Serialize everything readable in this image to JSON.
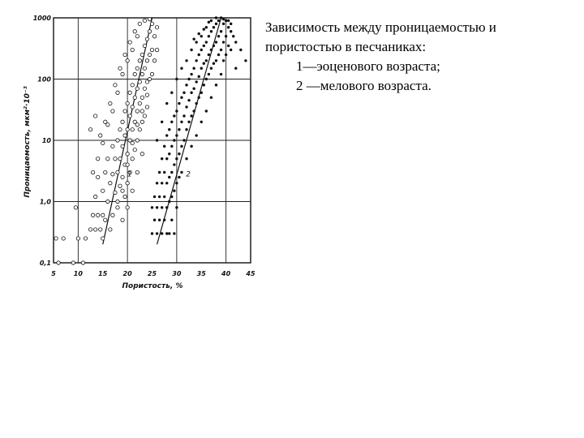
{
  "caption": {
    "line1": "Зависимость между проницаемостью и",
    "line2": "пористостью в песчаниках:",
    "line3": "1—эоценового   возраста;",
    "line4": "2 —мелового возраста."
  },
  "chart_data": {
    "type": "scatter",
    "xlabel": "Пористость, %",
    "ylabel": "Проницаемость,  мкм²·10⁻³",
    "xlim": [
      5,
      45
    ],
    "ylim": [
      0.1,
      1000
    ],
    "yscale": "log",
    "grid": true,
    "x_ticks": [
      "5",
      "10",
      "15",
      "20",
      "25",
      "30",
      "35",
      "40",
      "45"
    ],
    "y_ticks": [
      "0,1",
      "1,0",
      "10",
      "100",
      "1000"
    ],
    "series": [
      {
        "name": "1",
        "marker": "open-circle",
        "trend": [
          [
            15,
            0.2
          ],
          [
            25,
            1000
          ]
        ],
        "points": [
          [
            5.5,
            0.25
          ],
          [
            6,
            0.1
          ],
          [
            7,
            0.25
          ],
          [
            9,
            0.1
          ],
          [
            9.5,
            0.8
          ],
          [
            10,
            0.25
          ],
          [
            11,
            0.1
          ],
          [
            11.5,
            0.25
          ],
          [
            12.5,
            0.35
          ],
          [
            13,
            0.6
          ],
          [
            13.5,
            0.35
          ],
          [
            13.5,
            1.2
          ],
          [
            14,
            0.6
          ],
          [
            14,
            2.5
          ],
          [
            14.5,
            0.35
          ],
          [
            15,
            0.6
          ],
          [
            15,
            1.5
          ],
          [
            15,
            0.25
          ],
          [
            15.5,
            3
          ],
          [
            15.5,
            0.5
          ],
          [
            16,
            1
          ],
          [
            16,
            5
          ],
          [
            16.5,
            0.35
          ],
          [
            16.5,
            2
          ],
          [
            17,
            8
          ],
          [
            17,
            2.8
          ],
          [
            17,
            0.6
          ],
          [
            17.5,
            5
          ],
          [
            17.5,
            1.4
          ],
          [
            18,
            10
          ],
          [
            18,
            3
          ],
          [
            18,
            0.8
          ],
          [
            18.5,
            15
          ],
          [
            18.5,
            5
          ],
          [
            18.5,
            1.8
          ],
          [
            19,
            20
          ],
          [
            19,
            8
          ],
          [
            19,
            2.5
          ],
          [
            19,
            0.5
          ],
          [
            19.5,
            30
          ],
          [
            19.5,
            12
          ],
          [
            19.5,
            4
          ],
          [
            19.5,
            1.2
          ],
          [
            20,
            40
          ],
          [
            20,
            15
          ],
          [
            20,
            6
          ],
          [
            20,
            2
          ],
          [
            20,
            0.8
          ],
          [
            20.5,
            60
          ],
          [
            20.5,
            25
          ],
          [
            20.5,
            10
          ],
          [
            20.5,
            3
          ],
          [
            21,
            80
          ],
          [
            21,
            35
          ],
          [
            21,
            15
          ],
          [
            21,
            5
          ],
          [
            21,
            1.5
          ],
          [
            21.5,
            120
          ],
          [
            21.5,
            50
          ],
          [
            21.5,
            20
          ],
          [
            21.5,
            7
          ],
          [
            22,
            150
          ],
          [
            22,
            70
          ],
          [
            22,
            30
          ],
          [
            22,
            10
          ],
          [
            22,
            3
          ],
          [
            22.5,
            200
          ],
          [
            22.5,
            90
          ],
          [
            22.5,
            40
          ],
          [
            22.5,
            15
          ],
          [
            23,
            250
          ],
          [
            23,
            120
          ],
          [
            23,
            50
          ],
          [
            23,
            20
          ],
          [
            23,
            6
          ],
          [
            23.5,
            350
          ],
          [
            23.5,
            150
          ],
          [
            23.5,
            70
          ],
          [
            23.5,
            25
          ],
          [
            24,
            450
          ],
          [
            24,
            200
          ],
          [
            24,
            90
          ],
          [
            24,
            35
          ],
          [
            24.5,
            600
          ],
          [
            24.5,
            250
          ],
          [
            24.5,
            100
          ],
          [
            25,
            800
          ],
          [
            25,
            300
          ],
          [
            25,
            120
          ],
          [
            25.5,
            500
          ],
          [
            25.5,
            200
          ],
          [
            26,
            700
          ],
          [
            26,
            300
          ],
          [
            22.5,
            800
          ],
          [
            21.5,
            600
          ],
          [
            20.5,
            400
          ],
          [
            19.5,
            250
          ],
          [
            18.5,
            150
          ],
          [
            17.5,
            80
          ],
          [
            16.5,
            40
          ],
          [
            15.5,
            20
          ],
          [
            14.5,
            12
          ],
          [
            13.5,
            25
          ],
          [
            12.5,
            15
          ],
          [
            23.5,
            900
          ],
          [
            24.5,
            950
          ],
          [
            22,
            500
          ],
          [
            21,
            300
          ],
          [
            20,
            200
          ],
          [
            19,
            120
          ],
          [
            18,
            60
          ],
          [
            17,
            30
          ],
          [
            16,
            18
          ],
          [
            15,
            9
          ],
          [
            14,
            5
          ],
          [
            13,
            3
          ],
          [
            24,
            55
          ],
          [
            23,
            30
          ],
          [
            22,
            18
          ],
          [
            21,
            9
          ],
          [
            20,
            4
          ],
          [
            19,
            1.5
          ],
          [
            18,
            1
          ]
        ]
      },
      {
        "name": "2",
        "marker": "filled-dot",
        "trend": [
          [
            26,
            0.2
          ],
          [
            39,
            1000
          ]
        ],
        "points": [
          [
            25,
            0.8
          ],
          [
            25,
            0.3
          ],
          [
            25.5,
            1.2
          ],
          [
            25.5,
            0.5
          ],
          [
            26,
            2
          ],
          [
            26,
            0.8
          ],
          [
            26,
            0.3
          ],
          [
            26.5,
            3
          ],
          [
            26.5,
            1.2
          ],
          [
            26.5,
            0.5
          ],
          [
            27,
            5
          ],
          [
            27,
            2
          ],
          [
            27,
            0.8
          ],
          [
            27,
            0.3
          ],
          [
            27.5,
            8
          ],
          [
            27.5,
            3
          ],
          [
            27.5,
            1.2
          ],
          [
            27.5,
            0.5
          ],
          [
            28,
            12
          ],
          [
            28,
            5
          ],
          [
            28,
            2
          ],
          [
            28,
            0.8
          ],
          [
            28,
            0.3
          ],
          [
            28.5,
            15
          ],
          [
            28.5,
            6
          ],
          [
            28.5,
            2.5
          ],
          [
            28.5,
            1
          ],
          [
            28.5,
            0.3
          ],
          [
            29,
            20
          ],
          [
            29,
            8
          ],
          [
            29,
            3
          ],
          [
            29,
            1.2
          ],
          [
            29,
            0.5
          ],
          [
            29.5,
            25
          ],
          [
            29.5,
            10
          ],
          [
            29.5,
            4
          ],
          [
            29.5,
            1.5
          ],
          [
            29.5,
            0.3
          ],
          [
            30,
            30
          ],
          [
            30,
            12
          ],
          [
            30,
            5
          ],
          [
            30,
            2
          ],
          [
            30,
            0.8
          ],
          [
            30.5,
            40
          ],
          [
            30.5,
            15
          ],
          [
            30.5,
            6
          ],
          [
            30.5,
            2.5
          ],
          [
            31,
            50
          ],
          [
            31,
            20
          ],
          [
            31,
            8
          ],
          [
            31,
            3
          ],
          [
            31.5,
            60
          ],
          [
            31.5,
            25
          ],
          [
            31.5,
            10
          ],
          [
            32,
            80
          ],
          [
            32,
            35
          ],
          [
            32,
            15
          ],
          [
            32,
            5
          ],
          [
            32.5,
            100
          ],
          [
            32.5,
            45
          ],
          [
            32.5,
            20
          ],
          [
            33,
            120
          ],
          [
            33,
            60
          ],
          [
            33,
            25
          ],
          [
            33,
            8
          ],
          [
            33.5,
            150
          ],
          [
            33.5,
            70
          ],
          [
            33.5,
            30
          ],
          [
            34,
            200
          ],
          [
            34,
            90
          ],
          [
            34,
            40
          ],
          [
            34,
            12
          ],
          [
            34.5,
            250
          ],
          [
            34.5,
            110
          ],
          [
            34.5,
            50
          ],
          [
            35,
            300
          ],
          [
            35,
            150
          ],
          [
            35,
            60
          ],
          [
            35,
            20
          ],
          [
            35.5,
            350
          ],
          [
            35.5,
            180
          ],
          [
            35.5,
            80
          ],
          [
            36,
            400
          ],
          [
            36,
            200
          ],
          [
            36,
            100
          ],
          [
            36,
            30
          ],
          [
            36.5,
            500
          ],
          [
            36.5,
            250
          ],
          [
            36.5,
            120
          ],
          [
            37,
            600
          ],
          [
            37,
            300
          ],
          [
            37,
            150
          ],
          [
            37,
            50
          ],
          [
            37.5,
            700
          ],
          [
            37.5,
            350
          ],
          [
            37.5,
            180
          ],
          [
            38,
            800
          ],
          [
            38,
            400
          ],
          [
            38,
            200
          ],
          [
            38,
            80
          ],
          [
            38.5,
            900
          ],
          [
            38.5,
            500
          ],
          [
            38.5,
            250
          ],
          [
            39,
            1000
          ],
          [
            39,
            600
          ],
          [
            39,
            300
          ],
          [
            39,
            120
          ],
          [
            39.5,
            800
          ],
          [
            39.5,
            400
          ],
          [
            39.5,
            200
          ],
          [
            40,
            900
          ],
          [
            40,
            500
          ],
          [
            40,
            250
          ],
          [
            40.5,
            700
          ],
          [
            40.5,
            350
          ],
          [
            41,
            600
          ],
          [
            41,
            300
          ],
          [
            41.5,
            500
          ],
          [
            42,
            400
          ],
          [
            42,
            150
          ],
          [
            43,
            300
          ],
          [
            44,
            200
          ],
          [
            36,
            700
          ],
          [
            35,
            500
          ],
          [
            34,
            400
          ],
          [
            33,
            300
          ],
          [
            32,
            200
          ],
          [
            31,
            150
          ],
          [
            30,
            100
          ],
          [
            29,
            60
          ],
          [
            28,
            40
          ],
          [
            27,
            20
          ],
          [
            26,
            10
          ],
          [
            37,
            900
          ],
          [
            38,
            1000
          ],
          [
            39.5,
            950
          ],
          [
            40.5,
            900
          ],
          [
            41,
            800
          ],
          [
            36.5,
            850
          ],
          [
            35.5,
            650
          ],
          [
            34.5,
            550
          ],
          [
            33.5,
            450
          ]
        ]
      }
    ]
  }
}
